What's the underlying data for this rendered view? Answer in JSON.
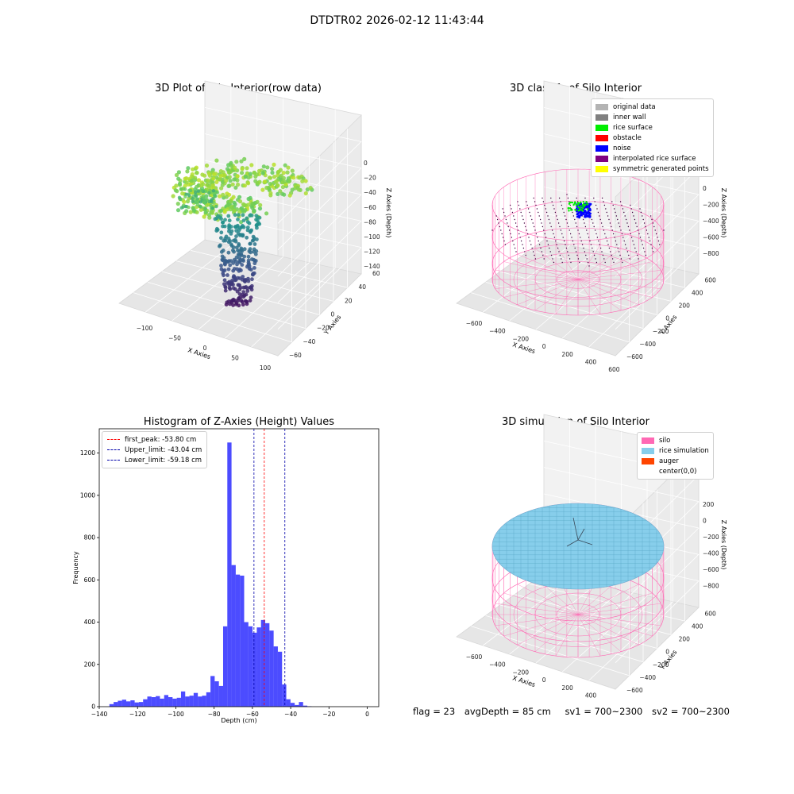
{
  "suptitle": "DTDTR02 2026-02-12 11:43:44",
  "panels": {
    "raw": {
      "title": "3D Plot of Silo Interior(row data)",
      "xlabel": "X Axies",
      "ylabel": "Y Axies",
      "zlabel": "Z Axies (Depth)",
      "xticks": [
        "−100",
        "−50",
        "0",
        "50",
        "100"
      ],
      "yticks": [
        "−60",
        "−40",
        "−20",
        "0",
        "20",
        "40",
        "60"
      ],
      "zticks": [
        "0",
        "−20",
        "−40",
        "−60",
        "−80",
        "−100",
        "−120",
        "−140"
      ]
    },
    "classify": {
      "title": "3D classify of Silo Interior",
      "xlabel": "X Axies",
      "ylabel": "Y Axies",
      "zlabel": "Z Axies (Depth)",
      "xticks": [
        "−600",
        "−400",
        "−200",
        "0",
        "200",
        "400",
        "600"
      ],
      "yticks": [
        "−600",
        "−400",
        "−200",
        "0",
        "200",
        "400",
        "600"
      ],
      "zticks": [
        "0",
        "−200",
        "−400",
        "−600",
        "−800"
      ],
      "legend": [
        {
          "label": "original data",
          "color": "#b3b3b3"
        },
        {
          "label": "inner wall",
          "color": "#808080"
        },
        {
          "label": "rice surface",
          "color": "#00ee00"
        },
        {
          "label": "obstacle",
          "color": "#ff0000"
        },
        {
          "label": "noise",
          "color": "#0000ff"
        },
        {
          "label": "interpolated rice surface",
          "color": "#800080"
        },
        {
          "label": "symmetric generated points",
          "color": "#ffff00"
        }
      ]
    },
    "simulation": {
      "title": "3D simulation of Silo Interior",
      "xlabel": "X Axies",
      "ylabel": "Y Axies",
      "zlabel": "Z Axies (Depth)",
      "xticks": [
        "−600",
        "−400",
        "−200",
        "0",
        "200",
        "400",
        "600"
      ],
      "yticks": [
        "−600",
        "−400",
        "−200",
        "0",
        "200",
        "400",
        "600"
      ],
      "zticks": [
        "200",
        "0",
        "−200",
        "−400",
        "−600",
        "−800"
      ],
      "legend": [
        {
          "label": "silo",
          "color": "#ff69b4"
        },
        {
          "label": "rice simulation",
          "color": "#87ceeb"
        },
        {
          "label": "auger",
          "color": "#ff4500"
        },
        {
          "label": "center(0,0)",
          "color": "#ffffff"
        }
      ]
    }
  },
  "chart_data": {
    "type": "bar",
    "title": "Histogram of Z-Axies (Height) Values",
    "xlabel": "Depth (cm)",
    "ylabel": "Frequency",
    "xlim": [
      -140,
      6
    ],
    "ylim": [
      0,
      1315
    ],
    "xticks": [
      -140,
      -120,
      -100,
      -80,
      -60,
      -40,
      -20,
      0
    ],
    "yticks": [
      0,
      200,
      400,
      600,
      800,
      1000,
      1200
    ],
    "bin_width": 2.2,
    "bin_start": -134.7,
    "counts": [
      12,
      22,
      28,
      33,
      25,
      30,
      20,
      22,
      35,
      48,
      45,
      50,
      38,
      55,
      45,
      38,
      42,
      72,
      48,
      52,
      65,
      48,
      52,
      68,
      145,
      120,
      98,
      380,
      1250,
      670,
      625,
      620,
      400,
      380,
      350,
      375,
      410,
      395,
      360,
      285,
      260,
      105,
      35,
      18,
      8,
      22,
      5,
      2
    ],
    "bar_color": "#0000ff",
    "lines": [
      {
        "label": "first_peak: -53.80 cm",
        "x": -53.8,
        "color": "#ff0000"
      },
      {
        "label": "Upper_limit: -43.04 cm",
        "x": -43.04,
        "color": "#0000aa"
      },
      {
        "label": "Lower_limit: -59.18 cm",
        "x": -59.18,
        "color": "#0000aa"
      }
    ],
    "legend_position": "top-left"
  },
  "footer": {
    "flag": "flag = 23",
    "avg_depth": "avgDepth = 85 cm",
    "sv1": "sv1 = 700~2300",
    "sv2": "sv2 = 700~2300"
  }
}
